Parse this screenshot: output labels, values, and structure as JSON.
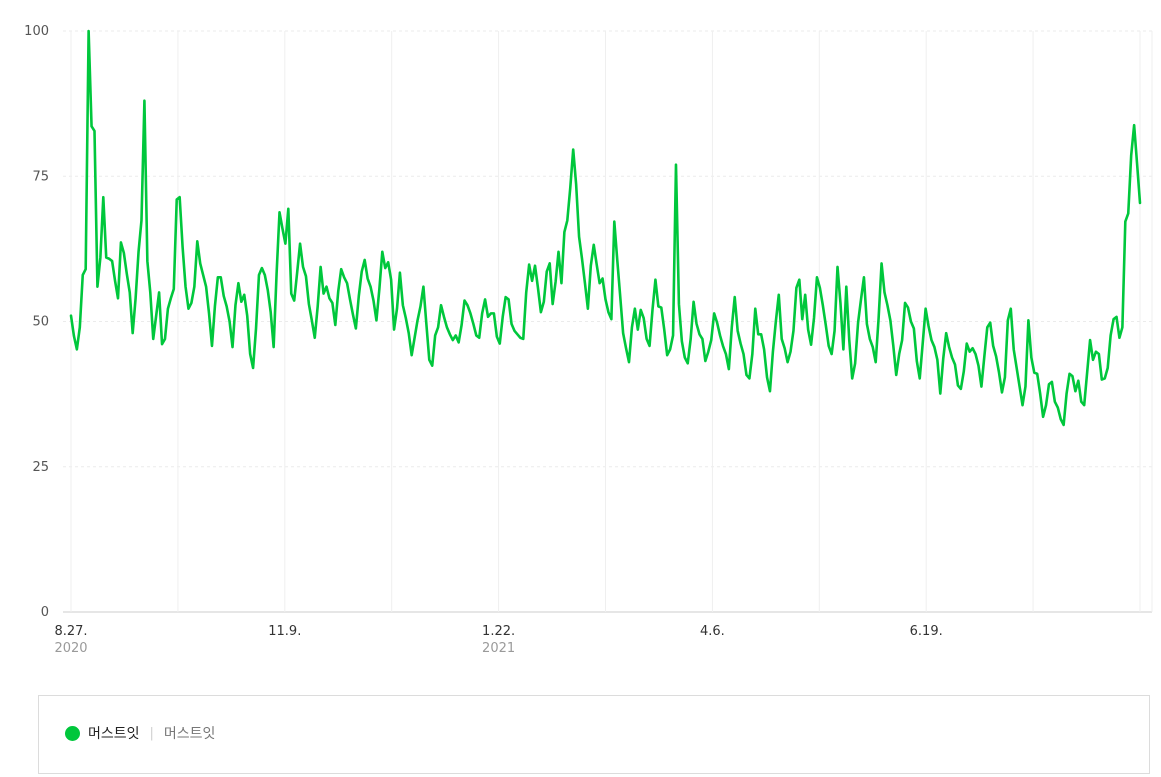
{
  "chart_data": {
    "type": "line",
    "title": "",
    "xlabel": "",
    "ylabel": "",
    "ylim": [
      0,
      100
    ],
    "yticks": [
      "0",
      "25",
      "50",
      "75",
      "100"
    ],
    "xticks": [
      {
        "label": "8.27.",
        "year": "2020"
      },
      {
        "label": "11.9.",
        "year": ""
      },
      {
        "label": "1.22.",
        "year": "2021"
      },
      {
        "label": "4.6.",
        "year": ""
      },
      {
        "label": "6.19.",
        "year": ""
      }
    ],
    "grid": true,
    "color": "#00c73c",
    "series": [
      {
        "name": "머스트잇",
        "values": [
          51,
          47.5,
          45.2,
          49,
          58,
          59,
          100,
          83.6,
          82.8,
          56,
          61,
          71.4,
          61,
          60.8,
          60.4,
          57,
          54,
          63.6,
          61.8,
          58.2,
          55,
          48,
          54,
          62,
          67.4,
          88,
          60.4,
          55,
          47,
          51,
          55,
          46.1,
          47,
          52.2,
          54,
          55.6,
          71,
          71.4,
          62.8,
          56,
          52.2,
          53.2,
          56,
          63.8,
          60,
          58,
          56,
          51.4,
          45.8,
          52.6,
          57.6,
          57.6,
          54.4,
          52.6,
          50,
          45.6,
          52.8,
          56.6,
          53.4,
          54.6,
          51,
          44.4,
          42,
          48.8,
          58,
          59.2,
          58,
          55.4,
          51.6,
          45.6,
          58.2,
          68.8,
          66,
          63.4,
          69.4,
          54.8,
          53.6,
          58.4,
          63.4,
          59.4,
          57.8,
          53,
          50.2,
          47.2,
          52.6,
          59.4,
          54.8,
          56,
          54,
          53.2,
          49.4,
          55.2,
          59,
          57.6,
          56.6,
          53.8,
          51.2,
          48.8,
          54.4,
          58.6,
          60.6,
          57.4,
          56,
          53.6,
          50.2,
          55.6,
          62,
          59.2,
          60.2,
          57.2,
          48.6,
          52.2,
          58.4,
          52.8,
          50.6,
          48,
          44.2,
          47.2,
          50.2,
          52.6,
          56,
          49.6,
          43.4,
          42.4,
          47.6,
          49,
          52.8,
          50.8,
          49,
          47.8,
          46.8,
          47.6,
          46.4,
          49.4,
          53.6,
          52.8,
          51.4,
          49.6,
          47.6,
          47.2,
          51.4,
          53.8,
          50.8,
          51.4,
          51.4,
          47.4,
          46.2,
          50.8,
          54.2,
          53.8,
          49.6,
          48.4,
          47.8,
          47.2,
          47,
          55,
          59.8,
          57,
          59.6,
          55.8,
          51.6,
          53.4,
          58.6,
          60,
          53,
          56.8,
          62,
          56.6,
          65.4,
          67.4,
          73,
          79.6,
          73.6,
          64.6,
          60.8,
          56.6,
          52.2,
          59.6,
          63.2,
          59.8,
          56.6,
          57.4,
          53.8,
          51.6,
          50.4,
          67.2,
          60.6,
          54.4,
          48,
          45.4,
          43,
          49,
          52.2,
          48.6,
          52,
          50.6,
          47,
          45.8,
          52,
          57.2,
          52.6,
          52.4,
          48.6,
          44.2,
          45.2,
          47.6,
          77,
          53,
          46.6,
          43.8,
          42.8,
          47,
          53.4,
          49.6,
          47.8,
          47,
          43.2,
          44.8,
          46.8,
          51.4,
          49.8,
          47.6,
          45.8,
          44.4,
          41.8,
          49,
          54.2,
          48.4,
          46.2,
          44.4,
          40.8,
          40.2,
          44.4,
          52.2,
          47.8,
          47.8,
          45.2,
          40.4,
          38,
          44.8,
          50,
          54.6,
          47,
          45.4,
          43,
          44.8,
          48.4,
          55.8,
          57.2,
          50.4,
          54.6,
          48.6,
          46,
          50.6,
          57.6,
          55.8,
          52.8,
          49.4,
          45.8,
          44.4,
          48.4,
          59.4,
          53.2,
          45.2,
          56,
          46.8,
          40.2,
          42.8,
          49.8,
          53.8,
          57.6,
          49.6,
          47,
          45.6,
          43,
          50.6,
          60,
          55,
          52.8,
          50.2,
          45.8,
          40.8,
          44.4,
          46.8,
          53.2,
          52.4,
          50,
          48.8,
          43.2,
          40.2,
          46.2,
          52.2,
          49.2,
          46.8,
          45.6,
          43.4,
          37.6,
          43.6,
          48,
          45.6,
          43.8,
          42.6,
          39,
          38.4,
          41.4,
          46.2,
          44.8,
          45.4,
          44.4,
          42.4,
          38.8,
          44,
          49,
          49.8,
          45.8,
          44,
          41.2,
          37.8,
          40.4,
          50.2,
          52.2,
          45.2,
          42,
          38.8,
          35.6,
          38.8,
          50.2,
          43.8,
          41.2,
          41,
          37.6,
          33.6,
          35.6,
          39.2,
          39.6,
          36.2,
          35.2,
          33.2,
          32.2,
          37.6,
          41,
          40.6,
          38,
          39.8,
          36.2,
          35.6,
          41.2,
          46.8,
          43.4,
          44.8,
          44.4,
          40,
          40.2,
          42,
          47.6,
          50.4,
          50.8,
          47.2,
          49,
          67.2,
          68.6,
          78.6,
          83.8,
          77.2,
          70.4
        ]
      }
    ]
  },
  "legend": {
    "name": "머스트잇",
    "sub": "머스트잇",
    "separator": "|"
  }
}
